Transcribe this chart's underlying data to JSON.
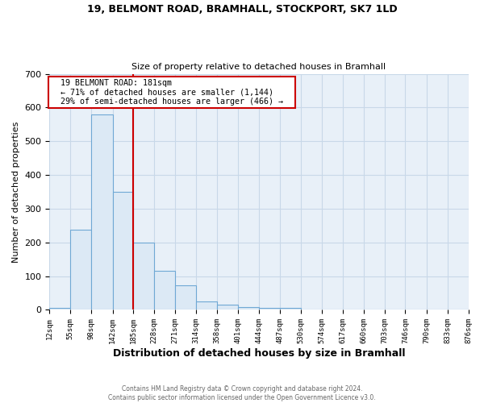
{
  "title1": "19, BELMONT ROAD, BRAMHALL, STOCKPORT, SK7 1LD",
  "title2": "Size of property relative to detached houses in Bramhall",
  "xlabel": "Distribution of detached houses by size in Bramhall",
  "ylabel": "Number of detached properties",
  "bin_edges": [
    12,
    55,
    98,
    142,
    185,
    228,
    271,
    314,
    358,
    401,
    444,
    487,
    530,
    574,
    617,
    660,
    703,
    746,
    790,
    833,
    876
  ],
  "bar_heights": [
    5,
    238,
    580,
    350,
    200,
    117,
    73,
    25,
    15,
    8,
    5,
    5,
    0,
    0,
    0,
    0,
    0,
    0,
    0,
    0
  ],
  "bar_color": "#dce9f5",
  "bar_edge_color": "#6fa8d4",
  "vline_x": 185,
  "vline_color": "#cc0000",
  "annotation_text": "  19 BELMONT ROAD: 181sqm  \n  ← 71% of detached houses are smaller (1,144)  \n  29% of semi-detached houses are larger (466) →  ",
  "annotation_box_color": "#ffffff",
  "annotation_box_edge": "#cc0000",
  "ylim": [
    0,
    700
  ],
  "yticks": [
    0,
    100,
    200,
    300,
    400,
    500,
    600,
    700
  ],
  "tick_labels": [
    "12sqm",
    "55sqm",
    "98sqm",
    "142sqm",
    "185sqm",
    "228sqm",
    "271sqm",
    "314sqm",
    "358sqm",
    "401sqm",
    "444sqm",
    "487sqm",
    "530sqm",
    "574sqm",
    "617sqm",
    "660sqm",
    "703sqm",
    "746sqm",
    "790sqm",
    "833sqm",
    "876sqm"
  ],
  "footnote": "Contains HM Land Registry data © Crown copyright and database right 2024.\nContains public sector information licensed under the Open Government Licence v3.0.",
  "bg_color": "#ffffff",
  "axes_bg_color": "#e8f0f8",
  "grid_color": "#c8d8e8"
}
